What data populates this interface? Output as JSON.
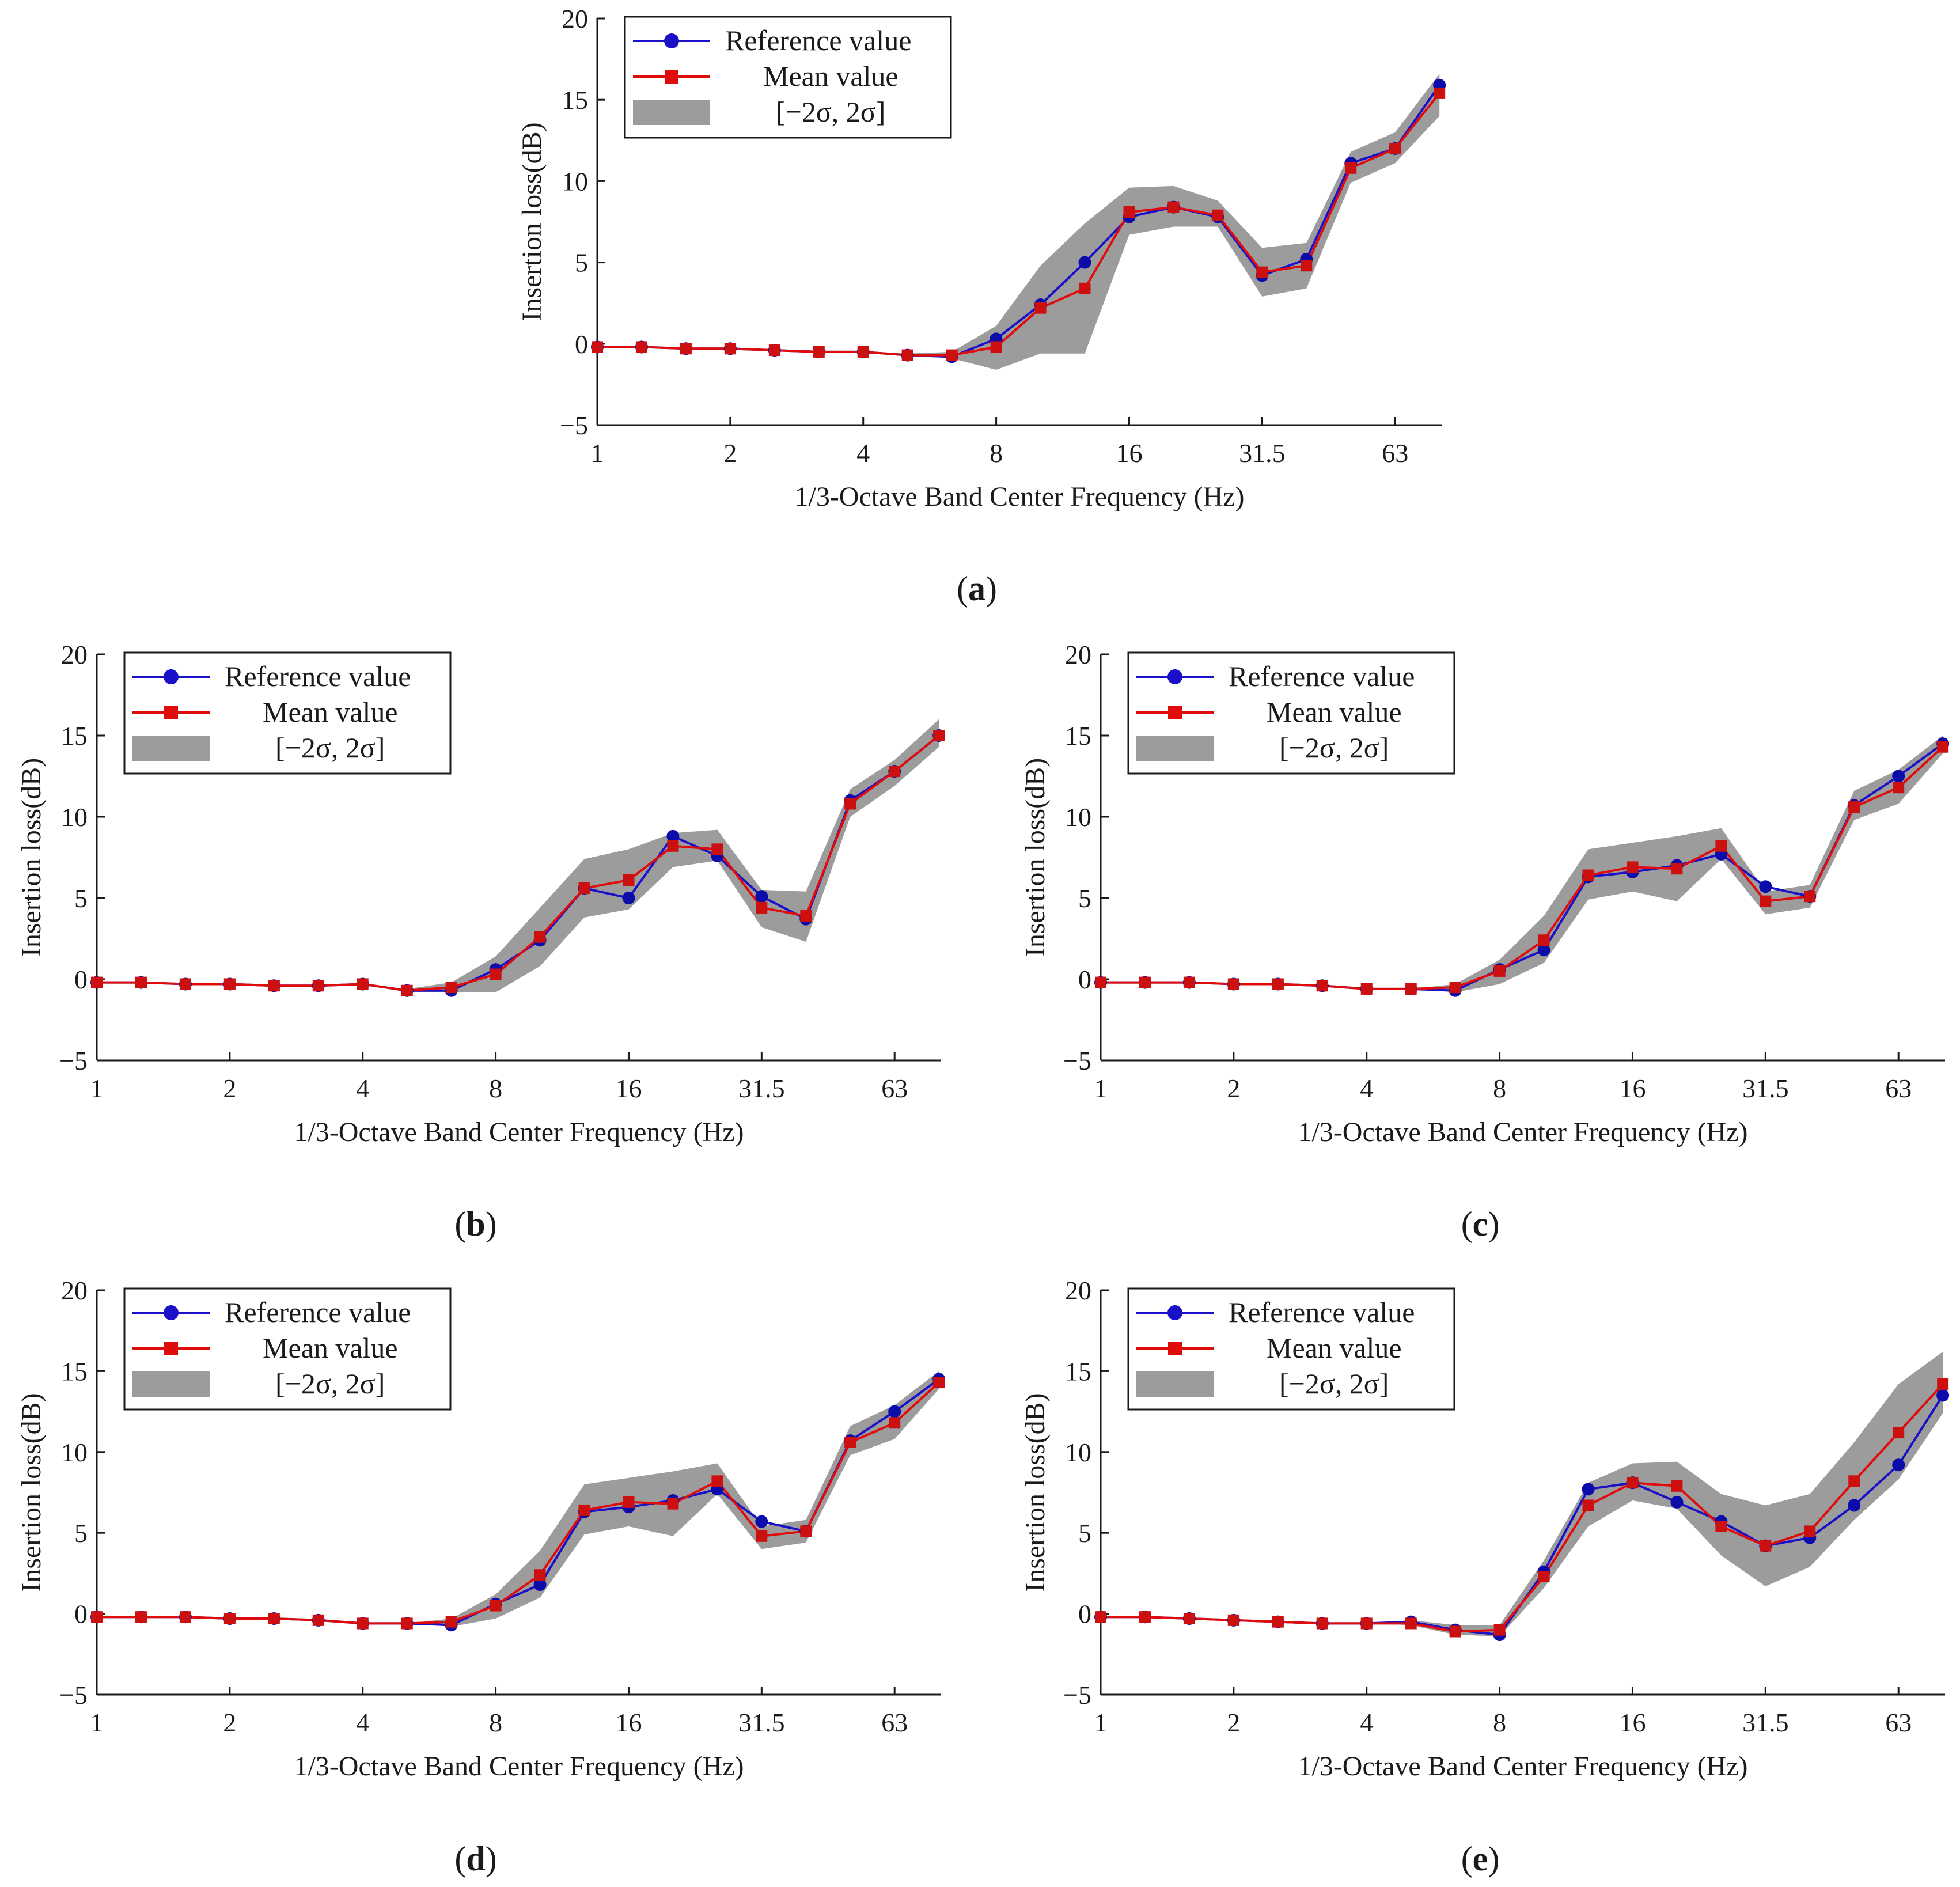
{
  "colors": {
    "reference": "#1a10c8",
    "reference_marker": "#0c0caa",
    "mean": "#e00b0b",
    "mean_marker": "#cc1010",
    "band": "#9c9c9c",
    "axis": "#1a1a1a"
  },
  "legend": {
    "reference": "Reference value",
    "mean": "Mean value",
    "band": "[−2σ, 2σ]"
  },
  "chart_data": [
    {
      "type": "line",
      "panel_label": "a",
      "xlabel": "1/3-Octave Band Center Frequency (Hz)",
      "ylabel": "Insertion loss(dB)",
      "ylim": [
        -5,
        20
      ],
      "yticks": [
        "−5",
        "0",
        "5",
        "10",
        "15",
        "20"
      ],
      "x_ticks": [
        "1",
        "2",
        "4",
        "8",
        "16",
        "31.5",
        "63"
      ],
      "x": [
        1,
        1.25,
        1.6,
        2,
        2.5,
        3.15,
        4,
        5,
        6.3,
        8,
        10,
        12.5,
        16,
        20,
        25,
        31.5,
        40,
        50,
        63,
        80
      ],
      "legend_position": "top-left",
      "series": [
        {
          "name": "Reference value",
          "values": [
            -0.2,
            -0.2,
            -0.3,
            -0.3,
            -0.4,
            -0.5,
            -0.5,
            -0.7,
            -0.8,
            0.3,
            2.4,
            5.0,
            7.8,
            8.4,
            7.8,
            4.2,
            5.2,
            11.1,
            12.0,
            15.9
          ]
        },
        {
          "name": "Mean value",
          "values": [
            -0.2,
            -0.2,
            -0.3,
            -0.3,
            -0.4,
            -0.5,
            -0.5,
            -0.7,
            -0.7,
            -0.2,
            2.2,
            3.4,
            8.1,
            8.4,
            7.9,
            4.4,
            4.8,
            10.8,
            12.0,
            15.4
          ]
        },
        {
          "name": "[−2σ, 2σ] lower",
          "values": [
            -0.2,
            -0.2,
            -0.3,
            -0.3,
            -0.4,
            -0.5,
            -0.5,
            -0.7,
            -0.9,
            -1.6,
            -0.6,
            -0.6,
            6.7,
            7.2,
            7.2,
            2.9,
            3.4,
            9.9,
            11.1,
            14.0
          ]
        },
        {
          "name": "[−2σ, 2σ] upper",
          "values": [
            -0.2,
            -0.2,
            -0.3,
            -0.3,
            -0.4,
            -0.5,
            -0.5,
            -0.6,
            -0.5,
            1.1,
            4.8,
            7.4,
            9.6,
            9.7,
            8.8,
            5.9,
            6.2,
            11.8,
            13.0,
            16.6
          ]
        }
      ]
    },
    {
      "type": "line",
      "panel_label": "b",
      "xlabel": "1/3-Octave Band Center Frequency (Hz)",
      "ylabel": "Insertion loss(dB)",
      "ylim": [
        -5,
        20
      ],
      "yticks": [
        "−5",
        "0",
        "5",
        "10",
        "15",
        "20"
      ],
      "x_ticks": [
        "1",
        "2",
        "4",
        "8",
        "16",
        "31.5",
        "63"
      ],
      "x": [
        1,
        1.25,
        1.6,
        2,
        2.5,
        3.15,
        4,
        5,
        6.3,
        8,
        10,
        12.5,
        16,
        20,
        25,
        31.5,
        40,
        50,
        63,
        80
      ],
      "legend_position": "top-left",
      "series": [
        {
          "name": "Reference value",
          "values": [
            -0.2,
            -0.2,
            -0.3,
            -0.3,
            -0.4,
            -0.4,
            -0.3,
            -0.7,
            -0.7,
            0.6,
            2.4,
            5.6,
            5.0,
            8.8,
            7.6,
            5.1,
            3.7,
            11.0,
            12.8,
            15.0
          ]
        },
        {
          "name": "Mean value",
          "values": [
            -0.2,
            -0.2,
            -0.3,
            -0.3,
            -0.4,
            -0.4,
            -0.3,
            -0.7,
            -0.5,
            0.3,
            2.6,
            5.6,
            6.1,
            8.2,
            8.0,
            4.4,
            3.9,
            10.8,
            12.8,
            15.0
          ]
        },
        {
          "name": "[−2σ, 2σ] lower",
          "values": [
            -0.2,
            -0.2,
            -0.3,
            -0.3,
            -0.4,
            -0.4,
            -0.3,
            -0.8,
            -0.8,
            -0.8,
            0.8,
            3.8,
            4.3,
            6.9,
            7.3,
            3.2,
            2.3,
            10.0,
            11.9,
            14.3
          ]
        },
        {
          "name": "[−2σ, 2σ] upper",
          "values": [
            -0.2,
            -0.2,
            -0.3,
            -0.3,
            -0.4,
            -0.4,
            -0.3,
            -0.6,
            -0.2,
            1.4,
            4.4,
            7.4,
            8.0,
            9.0,
            9.2,
            5.5,
            5.4,
            11.7,
            13.5,
            16.0
          ]
        }
      ]
    },
    {
      "type": "line",
      "panel_label": "c",
      "xlabel": "1/3-Octave Band Center Frequency (Hz)",
      "ylabel": "Insertion loss(dB)",
      "ylim": [
        -5,
        20
      ],
      "yticks": [
        "−5",
        "0",
        "5",
        "10",
        "15",
        "20"
      ],
      "x_ticks": [
        "1",
        "2",
        "4",
        "8",
        "16",
        "31.5",
        "63"
      ],
      "x": [
        1,
        1.25,
        1.6,
        2,
        2.5,
        3.15,
        4,
        5,
        6.3,
        8,
        10,
        12.5,
        16,
        20,
        25,
        31.5,
        40,
        50,
        63,
        80
      ],
      "legend_position": "top-left",
      "series": [
        {
          "name": "Reference value",
          "values": [
            -0.2,
            -0.2,
            -0.2,
            -0.3,
            -0.3,
            -0.4,
            -0.6,
            -0.6,
            -0.7,
            0.6,
            1.8,
            6.3,
            6.6,
            7.0,
            7.7,
            5.7,
            5.1,
            10.7,
            12.5,
            14.5
          ]
        },
        {
          "name": "Mean value",
          "values": [
            -0.2,
            -0.2,
            -0.2,
            -0.3,
            -0.3,
            -0.4,
            -0.6,
            -0.6,
            -0.5,
            0.5,
            2.4,
            6.4,
            6.9,
            6.8,
            8.2,
            4.8,
            5.1,
            10.6,
            11.8,
            14.3
          ]
        },
        {
          "name": "[−2σ, 2σ] lower",
          "values": [
            -0.2,
            -0.2,
            -0.2,
            -0.3,
            -0.3,
            -0.4,
            -0.6,
            -0.6,
            -0.8,
            -0.3,
            1.0,
            4.9,
            5.4,
            4.8,
            7.4,
            4.0,
            4.4,
            9.8,
            10.8,
            13.9
          ]
        },
        {
          "name": "[−2σ, 2σ] upper",
          "values": [
            -0.2,
            -0.2,
            -0.2,
            -0.3,
            -0.3,
            -0.4,
            -0.6,
            -0.6,
            -0.3,
            1.2,
            3.9,
            8.0,
            8.4,
            8.8,
            9.3,
            5.4,
            5.8,
            11.6,
            12.9,
            15.0
          ]
        }
      ]
    },
    {
      "type": "line",
      "panel_label": "d",
      "xlabel": "1/3-Octave Band Center Frequency (Hz)",
      "ylabel": "Insertion loss(dB)",
      "ylim": [
        -5,
        20
      ],
      "yticks": [
        "−5",
        "0",
        "5",
        "10",
        "15",
        "20"
      ],
      "x_ticks": [
        "1",
        "2",
        "4",
        "8",
        "16",
        "31.5",
        "63"
      ],
      "x": [
        1,
        1.25,
        1.6,
        2,
        2.5,
        3.15,
        4,
        5,
        6.3,
        8,
        10,
        12.5,
        16,
        20,
        25,
        31.5,
        40,
        50,
        63,
        80
      ],
      "legend_position": "top-left",
      "series": [
        {
          "name": "Reference value",
          "values": [
            -0.2,
            -0.2,
            -0.2,
            -0.3,
            -0.3,
            -0.4,
            -0.6,
            -0.6,
            -0.7,
            0.6,
            1.8,
            6.3,
            6.6,
            7.0,
            7.7,
            5.7,
            5.1,
            10.7,
            12.5,
            14.5
          ]
        },
        {
          "name": "Mean value",
          "values": [
            -0.2,
            -0.2,
            -0.2,
            -0.3,
            -0.3,
            -0.4,
            -0.6,
            -0.6,
            -0.5,
            0.5,
            2.4,
            6.4,
            6.9,
            6.8,
            8.2,
            4.8,
            5.1,
            10.6,
            11.8,
            14.3
          ]
        },
        {
          "name": "[−2σ, 2σ] lower",
          "values": [
            -0.2,
            -0.2,
            -0.2,
            -0.3,
            -0.3,
            -0.4,
            -0.6,
            -0.6,
            -0.8,
            -0.3,
            1.0,
            4.9,
            5.4,
            4.8,
            7.4,
            4.0,
            4.4,
            9.8,
            10.8,
            13.9
          ]
        },
        {
          "name": "[−2σ, 2σ] upper",
          "values": [
            -0.2,
            -0.2,
            -0.2,
            -0.3,
            -0.3,
            -0.4,
            -0.6,
            -0.6,
            -0.3,
            1.2,
            3.9,
            8.0,
            8.4,
            8.8,
            9.3,
            5.4,
            5.8,
            11.6,
            12.9,
            15.0
          ]
        }
      ]
    },
    {
      "type": "line",
      "panel_label": "e",
      "xlabel": "1/3-Octave Band Center Frequency (Hz)",
      "ylabel": "Insertion loss(dB)",
      "ylim": [
        -5,
        20
      ],
      "yticks": [
        "−5",
        "0",
        "5",
        "10",
        "15",
        "20"
      ],
      "x_ticks": [
        "1",
        "2",
        "4",
        "8",
        "16",
        "31.5",
        "63"
      ],
      "x": [
        1,
        1.25,
        1.6,
        2,
        2.5,
        3.15,
        4,
        5,
        6.3,
        8,
        10,
        12.5,
        16,
        20,
        25,
        31.5,
        40,
        50,
        63,
        80
      ],
      "legend_position": "top-left",
      "series": [
        {
          "name": "Reference value",
          "values": [
            -0.2,
            -0.2,
            -0.3,
            -0.4,
            -0.5,
            -0.6,
            -0.6,
            -0.5,
            -1.0,
            -1.3,
            2.6,
            7.7,
            8.1,
            6.9,
            5.7,
            4.2,
            4.7,
            6.7,
            9.2,
            13.5
          ]
        },
        {
          "name": "Mean value",
          "values": [
            -0.2,
            -0.2,
            -0.3,
            -0.4,
            -0.5,
            -0.6,
            -0.6,
            -0.6,
            -1.1,
            -1.0,
            2.3,
            6.7,
            8.1,
            7.9,
            5.4,
            4.2,
            5.1,
            8.2,
            11.2,
            14.2
          ]
        },
        {
          "name": "[−2σ, 2σ] lower",
          "values": [
            -0.2,
            -0.2,
            -0.3,
            -0.4,
            -0.5,
            -0.6,
            -0.6,
            -0.7,
            -1.3,
            -1.4,
            1.6,
            5.4,
            7.0,
            6.5,
            3.6,
            1.7,
            2.9,
            5.8,
            8.3,
            12.4
          ]
        },
        {
          "name": "[−2σ, 2σ] upper",
          "values": [
            -0.2,
            -0.2,
            -0.3,
            -0.4,
            -0.5,
            -0.6,
            -0.6,
            -0.4,
            -0.7,
            -0.7,
            3.3,
            8.1,
            9.3,
            9.4,
            7.4,
            6.7,
            7.4,
            10.6,
            14.2,
            16.2
          ]
        }
      ]
    }
  ]
}
